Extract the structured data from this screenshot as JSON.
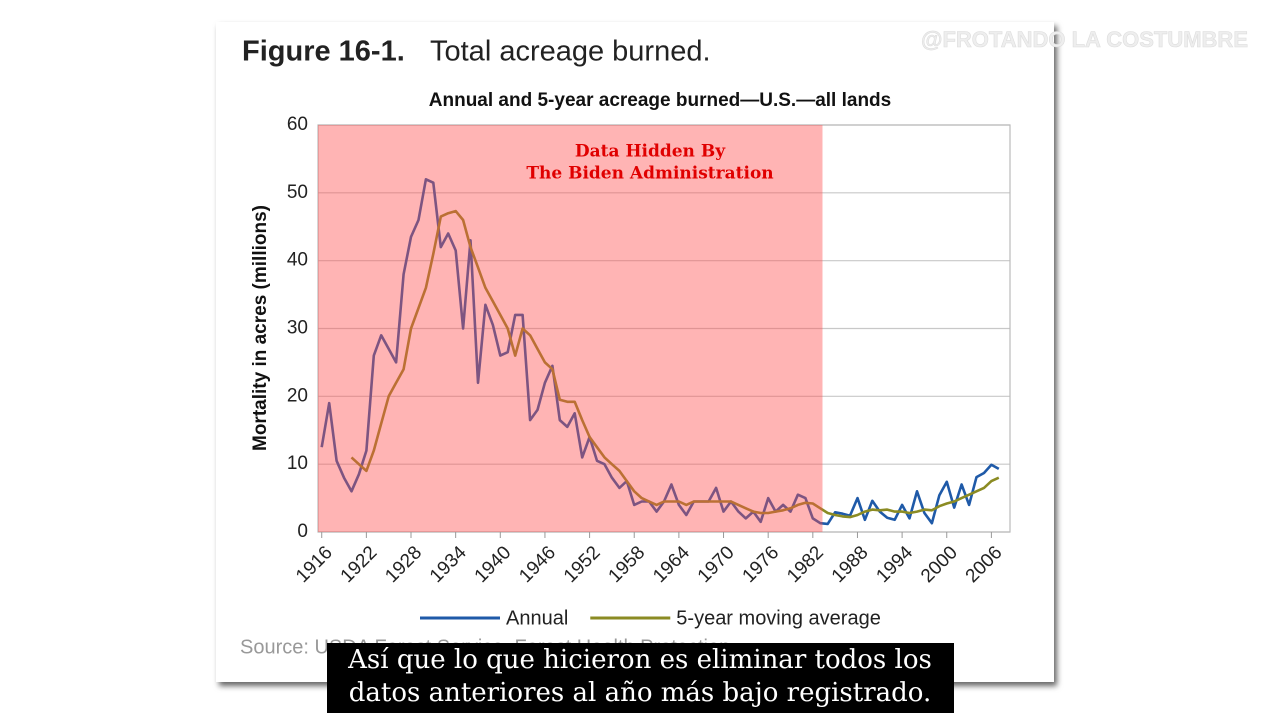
{
  "figure_label": "Figure 16-1.",
  "figure_title": "Total acreage burned.",
  "source": "Source: USDA Forest Service, Forest Health Protection",
  "watermark": "@FROTANDO LA COSTUMBRE",
  "caption": [
    "Así que lo que hicieron es eliminar todos los",
    "datos anteriores al año más bajo registrado."
  ],
  "chart_data": {
    "type": "line",
    "title": "Annual and 5-year acreage burned—U.S.—all lands",
    "y_label": "Mortality in acres (millions)",
    "x": [
      1916,
      1917,
      1918,
      1919,
      1920,
      1921,
      1922,
      1923,
      1924,
      1925,
      1926,
      1927,
      1928,
      1929,
      1930,
      1931,
      1932,
      1933,
      1934,
      1935,
      1936,
      1937,
      1938,
      1939,
      1940,
      1941,
      1942,
      1943,
      1944,
      1945,
      1946,
      1947,
      1948,
      1949,
      1950,
      1951,
      1952,
      1953,
      1954,
      1955,
      1956,
      1957,
      1958,
      1959,
      1960,
      1961,
      1962,
      1963,
      1964,
      1965,
      1966,
      1967,
      1968,
      1969,
      1970,
      1971,
      1972,
      1973,
      1974,
      1975,
      1976,
      1977,
      1978,
      1979,
      1980,
      1981,
      1982,
      1983,
      1984,
      1985,
      1986,
      1987,
      1988,
      1989,
      1990,
      1991,
      1992,
      1993,
      1994,
      1995,
      1996,
      1997,
      1998,
      1999,
      2000,
      2001,
      2002,
      2003,
      2004,
      2005,
      2006,
      2007
    ],
    "series": [
      {
        "name": "Annual",
        "color": "#1f5aa8",
        "values": [
          12.5,
          19,
          10.5,
          8,
          6,
          8.5,
          12,
          26,
          29,
          27,
          25,
          38,
          43.5,
          46,
          52,
          51.5,
          42,
          44,
          41.5,
          30,
          43,
          22,
          33.5,
          30.5,
          26,
          26.5,
          32,
          32,
          16.5,
          18,
          22,
          24.5,
          16.5,
          15.5,
          17.5,
          11,
          14,
          10.5,
          10,
          8,
          6.5,
          7.5,
          4,
          4.5,
          4.5,
          3,
          4.5,
          7,
          4,
          2.5,
          4.5,
          4.5,
          4.5,
          6.5,
          3,
          4.5,
          3,
          2,
          3,
          1.5,
          5,
          3,
          4,
          3,
          5.5,
          5,
          2,
          1.3,
          1.2,
          2.9,
          2.7,
          2.4,
          5,
          1.8,
          4.6,
          3,
          2.1,
          1.8,
          4,
          2,
          6,
          2.8,
          1.3,
          5.4,
          7.4,
          3.6,
          7,
          4,
          8.1,
          8.7,
          9.9,
          9.3
        ]
      },
      {
        "name": "5-year moving average",
        "color": "#8b8b23",
        "values": [
          null,
          null,
          null,
          null,
          11,
          10,
          9,
          12,
          16,
          20,
          22,
          24,
          30,
          33,
          36,
          41,
          46.5,
          47,
          47.3,
          46,
          42,
          39,
          36,
          34,
          32,
          30,
          26,
          30,
          29,
          27,
          25,
          24,
          19.5,
          19.2,
          19.2,
          16.5,
          14,
          12.5,
          11,
          10,
          9,
          7.5,
          6,
          5,
          4.5,
          4,
          4.5,
          4.5,
          4.5,
          4,
          4.5,
          4.5,
          4.5,
          4.5,
          4.5,
          4.5,
          4,
          3.5,
          3,
          2.8,
          2.8,
          3,
          3.2,
          3.5,
          4,
          4.3,
          4.2,
          3.5,
          2.8,
          2.5,
          2.3,
          2.2,
          2.5,
          3,
          3.3,
          3.2,
          3.3,
          3,
          3,
          2.8,
          3,
          3.3,
          3.2,
          3.8,
          4.2,
          4.5,
          5,
          5.5,
          6,
          6.5,
          7.5,
          8
        ]
      }
    ],
    "xlim": [
      1915.5,
      2008.5
    ],
    "ylim": [
      0,
      60
    ],
    "xticks": [
      1916,
      1922,
      1928,
      1934,
      1940,
      1946,
      1952,
      1958,
      1964,
      1970,
      1976,
      1982,
      1988,
      1994,
      2000,
      2006
    ],
    "yticks": [
      0,
      10,
      20,
      30,
      40,
      50,
      60
    ],
    "grid": true,
    "highlight": {
      "xrange": [
        1915.5,
        1983.3
      ],
      "color": "#ff4d4d",
      "label": [
        "Data Hidden By",
        "The Biden Administration"
      ]
    }
  }
}
